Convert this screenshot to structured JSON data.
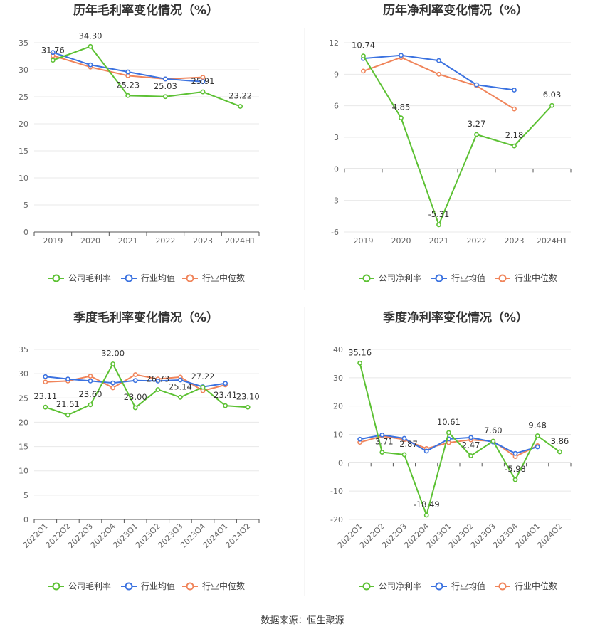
{
  "colors": {
    "company": "#5cc133",
    "industry_avg": "#3b72e0",
    "industry_median": "#f0845a",
    "grid": "#e6e6e6",
    "axis": "#555555"
  },
  "source": "数据来源：恒生聚源",
  "chart_data": [
    {
      "type": "line",
      "title": "历年毛利率变化情况（%）",
      "categories": [
        "2019",
        "2020",
        "2021",
        "2022",
        "2023",
        "2024H1"
      ],
      "ylim": [
        0,
        35
      ],
      "yticks": [
        0,
        5,
        10,
        15,
        20,
        25,
        30,
        35
      ],
      "legend_position": "bottom",
      "series": [
        {
          "name": "公司毛利率",
          "color": "#5cc133",
          "values": [
            31.76,
            34.3,
            25.23,
            25.03,
            25.91,
            23.22
          ],
          "labels": [
            "31.76",
            "34.30",
            "25.23",
            "25.03",
            "25.91",
            "23.22"
          ]
        },
        {
          "name": "行业均值",
          "color": "#3b72e0",
          "values": [
            33.2,
            30.9,
            29.6,
            28.3,
            27.8,
            null
          ]
        },
        {
          "name": "行业中位数",
          "color": "#f0845a",
          "values": [
            32.6,
            30.5,
            28.9,
            28.3,
            28.6,
            null
          ]
        }
      ]
    },
    {
      "type": "line",
      "title": "历年净利率变化情况（%）",
      "categories": [
        "2019",
        "2020",
        "2021",
        "2022",
        "2023",
        "2024H1"
      ],
      "ylim": [
        -6,
        12
      ],
      "yticks": [
        -6,
        -3,
        0,
        3,
        6,
        9,
        12
      ],
      "legend_position": "bottom",
      "series": [
        {
          "name": "公司净利率",
          "color": "#5cc133",
          "values": [
            10.74,
            4.85,
            -5.31,
            3.27,
            2.18,
            6.03
          ],
          "labels": [
            "10.74",
            "4.85",
            "-5.31",
            "3.27",
            "2.18",
            "6.03"
          ]
        },
        {
          "name": "行业均值",
          "color": "#3b72e0",
          "values": [
            10.5,
            10.8,
            10.3,
            8.0,
            7.5,
            null
          ]
        },
        {
          "name": "行业中位数",
          "color": "#f0845a",
          "values": [
            9.3,
            10.6,
            9.0,
            7.9,
            5.7,
            null
          ]
        }
      ]
    },
    {
      "type": "line",
      "title": "季度毛利率变化情况（%）",
      "categories": [
        "2022Q1",
        "2022Q2",
        "2022Q3",
        "2022Q4",
        "2023Q1",
        "2023Q2",
        "2023Q3",
        "2023Q4",
        "2024Q1",
        "2024Q2"
      ],
      "ylim": [
        0,
        35
      ],
      "yticks": [
        0,
        5,
        10,
        15,
        20,
        25,
        30,
        35
      ],
      "legend_position": "bottom",
      "series": [
        {
          "name": "公司毛利率",
          "color": "#5cc133",
          "values": [
            23.11,
            21.51,
            23.6,
            32.0,
            23.0,
            26.73,
            25.14,
            27.22,
            23.41,
            23.1
          ],
          "labels": [
            "23.11",
            "21.51",
            "23.60",
            "32.00",
            "23.00",
            "26.73",
            "25.14",
            "27.22",
            "23.41",
            "23.10"
          ]
        },
        {
          "name": "行业均值",
          "color": "#3b72e0",
          "values": [
            29.4,
            28.9,
            28.5,
            28.1,
            28.6,
            28.5,
            28.7,
            27.3,
            28.0,
            null
          ]
        },
        {
          "name": "行业中位数",
          "color": "#f0845a",
          "values": [
            28.3,
            28.5,
            29.5,
            27.1,
            29.8,
            28.9,
            29.3,
            26.5,
            27.7,
            null
          ]
        }
      ]
    },
    {
      "type": "line",
      "title": "季度净利率变化情况（%）",
      "categories": [
        "2022Q1",
        "2022Q2",
        "2022Q3",
        "2022Q4",
        "2023Q1",
        "2023Q2",
        "2023Q3",
        "2023Q4",
        "2024Q1",
        "2024Q2"
      ],
      "ylim": [
        -20,
        40
      ],
      "yticks": [
        -20,
        -10,
        0,
        10,
        20,
        30,
        40
      ],
      "legend_position": "bottom",
      "series": [
        {
          "name": "公司净利率",
          "color": "#5cc133",
          "values": [
            35.16,
            3.71,
            2.87,
            -18.49,
            10.61,
            2.47,
            7.6,
            -5.98,
            9.48,
            3.86
          ],
          "labels": [
            "35.16",
            "3.71",
            "2.87",
            "-18.49",
            "10.61",
            "2.47",
            "7.60",
            "-5.98",
            "9.48",
            "3.86"
          ]
        },
        {
          "name": "行业均值",
          "color": "#3b72e0",
          "values": [
            8.3,
            9.8,
            8.6,
            4.1,
            8.4,
            8.9,
            7.3,
            3.3,
            5.6,
            null
          ]
        },
        {
          "name": "行业中位数",
          "color": "#f0845a",
          "values": [
            7.2,
            9.4,
            8.2,
            5.0,
            7.1,
            8.1,
            7.6,
            2.2,
            6.0,
            null
          ]
        }
      ]
    }
  ]
}
